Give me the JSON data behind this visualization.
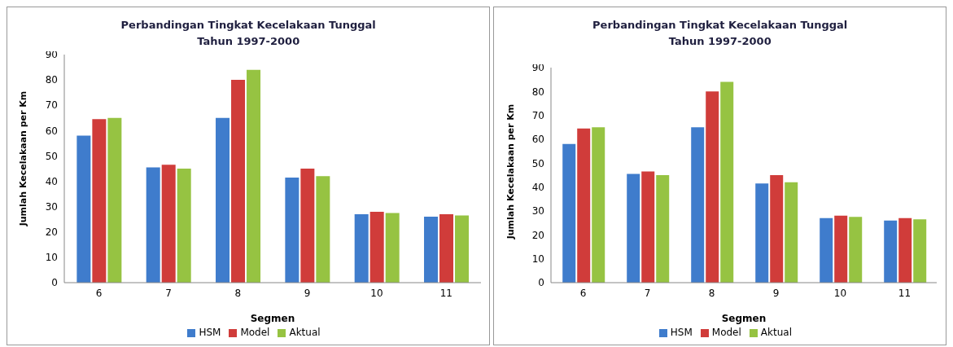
{
  "chart_data": [
    {
      "type": "bar",
      "title": "Perbandingan Tingkat Kecelakaan Tunggal\nTahun 1997-2000",
      "xlabel": "Segmen",
      "ylabel": "Jumlah Kecelakaan per Km",
      "categories": [
        "6",
        "7",
        "8",
        "9",
        "10",
        "11"
      ],
      "series": [
        {
          "name": "HSM",
          "color": "#3f7ccc",
          "values": [
            58,
            45.5,
            65,
            41.5,
            27,
            26
          ]
        },
        {
          "name": "Model",
          "color": "#d03c3a",
          "values": [
            64.5,
            46.5,
            80,
            45,
            28,
            27
          ]
        },
        {
          "name": "Aktual",
          "color": "#96c342",
          "values": [
            65,
            45,
            84,
            42,
            27.5,
            26.5
          ]
        }
      ],
      "ylim": [
        0,
        90
      ],
      "yticks": [
        0,
        10,
        20,
        30,
        40,
        50,
        60,
        70,
        80,
        90
      ],
      "grid": false,
      "legend": "bottom"
    },
    {
      "type": "bar",
      "title": "Perbandingan Tingkat Kecelakaan Tunggal\nTahun 1997-2000",
      "xlabel": "Segmen",
      "ylabel": "Jumlah Kecelakaan per Km",
      "categories": [
        "6",
        "7",
        "8",
        "9",
        "10",
        "11"
      ],
      "series": [
        {
          "name": "HSM",
          "color": "#3f7ccc",
          "values": [
            58,
            45.5,
            65,
            41.5,
            27,
            26
          ]
        },
        {
          "name": "Model",
          "color": "#d03c3a",
          "values": [
            64.5,
            46.5,
            80,
            45,
            28,
            27
          ]
        },
        {
          "name": "Aktual",
          "color": "#96c342",
          "values": [
            65,
            45,
            84,
            42,
            27.5,
            26.5
          ]
        }
      ],
      "ylim": [
        0,
        90
      ],
      "yticks": [
        0,
        10,
        20,
        30,
        40,
        50,
        60,
        70,
        80,
        90
      ],
      "grid": false,
      "legend": "bottom"
    }
  ]
}
